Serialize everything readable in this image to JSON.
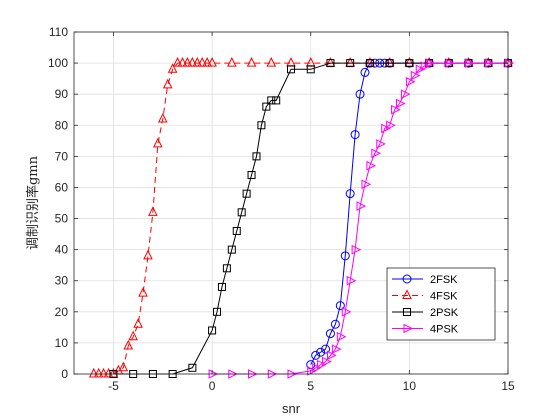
{
  "chart_data": {
    "type": "line",
    "xlabel": "snr",
    "ylabel": "调制识别率gmn",
    "xlim": [
      -7,
      15
    ],
    "ylim": [
      0,
      110
    ],
    "xticks": [
      -5,
      0,
      5,
      10,
      15
    ],
    "yticks": [
      0,
      10,
      20,
      30,
      40,
      50,
      60,
      70,
      80,
      90,
      100,
      110
    ],
    "grid": true,
    "legend_position": "bottom-right",
    "series": [
      {
        "name": "2FSK",
        "color": "#0000ff",
        "line_style": "solid",
        "marker": "circle",
        "x": [
          5,
          5.25,
          5.5,
          5.75,
          6,
          6.25,
          6.5,
          6.75,
          7,
          7.25,
          7.5,
          7.75,
          8,
          8.25,
          8.5,
          8.75,
          9,
          10,
          11,
          12,
          13,
          14,
          15
        ],
        "y": [
          3,
          6,
          7,
          8,
          13,
          16,
          22,
          38,
          58,
          77,
          90,
          97,
          100,
          100,
          100,
          100,
          100,
          100,
          100,
          100,
          100,
          100,
          100
        ]
      },
      {
        "name": "4FSK",
        "color": "#ff0000",
        "line_style": "dashed",
        "marker": "triangle-up",
        "x": [
          -6,
          -5.75,
          -5.5,
          -5.25,
          -5,
          -4.75,
          -4.5,
          -4.25,
          -4,
          -3.75,
          -3.5,
          -3.25,
          -3,
          -2.75,
          -2.5,
          -2.25,
          -2,
          -1.75,
          -1.5,
          -1.25,
          -1,
          -0.75,
          -0.5,
          -0.25,
          0,
          1,
          2,
          3,
          4,
          5,
          6,
          7,
          8,
          9,
          10,
          11,
          12,
          13,
          14,
          15
        ],
        "y": [
          0,
          0,
          0,
          0,
          0,
          1,
          2,
          9,
          12,
          16,
          26,
          38,
          52,
          74,
          82,
          93,
          98,
          100,
          100,
          100,
          100,
          100,
          100,
          100,
          100,
          100,
          100,
          100,
          100,
          100,
          100,
          100,
          100,
          100,
          100,
          100,
          100,
          100,
          100,
          100
        ]
      },
      {
        "name": "2PSK",
        "color": "#000000",
        "line_style": "solid",
        "marker": "square",
        "x": [
          -5,
          -4,
          -3,
          -2,
          -1,
          0,
          0.25,
          0.5,
          0.75,
          1,
          1.25,
          1.5,
          1.75,
          2,
          2.25,
          2.5,
          2.75,
          3,
          3.25,
          4,
          5,
          6,
          7,
          8,
          9,
          10,
          11,
          12,
          13,
          14,
          15
        ],
        "y": [
          0,
          0,
          0,
          0,
          2,
          14,
          20,
          28,
          34,
          40,
          46,
          52,
          58,
          64,
          70,
          80,
          86,
          88,
          88,
          98,
          98,
          100,
          100,
          100,
          100,
          100,
          100,
          100,
          100,
          100,
          100
        ]
      },
      {
        "name": "4PSK",
        "color": "#ff00ff",
        "line_style": "solid",
        "marker": "triangle-right",
        "x": [
          0,
          1,
          2,
          3,
          4,
          5,
          5.25,
          5.5,
          5.75,
          6,
          6.25,
          6.5,
          6.75,
          7,
          7.25,
          7.5,
          7.75,
          8,
          8.25,
          8.5,
          8.75,
          9,
          9.25,
          9.5,
          9.75,
          10,
          10.25,
          10.5,
          10.75,
          11,
          12,
          13,
          14,
          15
        ],
        "y": [
          0,
          0,
          0,
          0,
          0,
          1,
          2,
          3,
          4,
          6,
          8,
          12,
          20,
          30,
          40,
          54,
          61,
          67,
          71,
          74,
          79,
          80,
          85,
          87,
          90,
          94,
          96,
          98,
          99,
          100,
          100,
          100,
          100,
          100
        ]
      }
    ]
  }
}
